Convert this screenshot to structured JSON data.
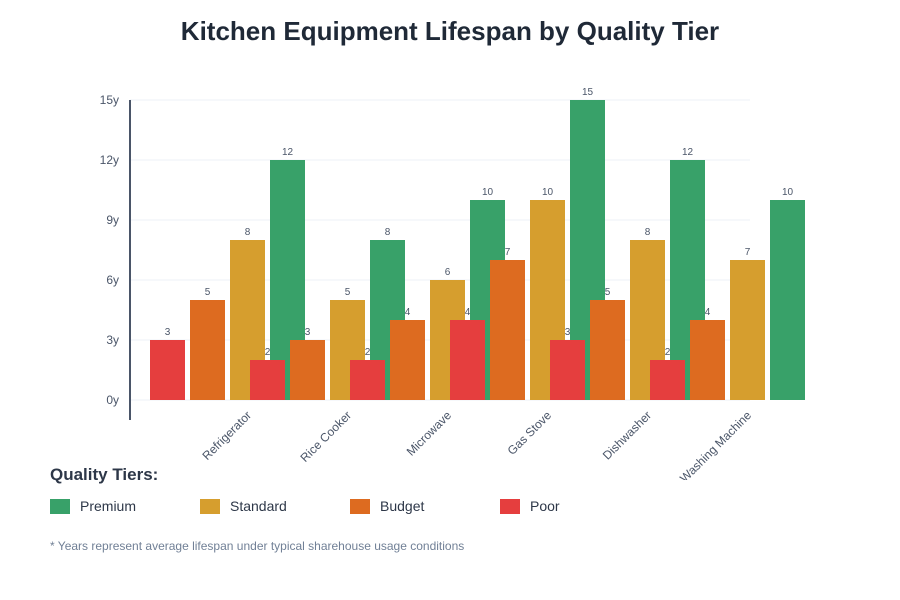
{
  "chart_data": {
    "type": "bar",
    "title": "Kitchen Equipment Lifespan by Quality Tier",
    "categories": [
      "Refrigerator",
      "Rice Cooker",
      "Microwave",
      "Gas Stove",
      "Dishwasher",
      "Washing Machine"
    ],
    "series": [
      {
        "name": "Premium",
        "color": "#38a169",
        "values": [
          12,
          8,
          10,
          15,
          12,
          10
        ]
      },
      {
        "name": "Standard",
        "color": "#d69e2e",
        "values": [
          8,
          5,
          6,
          10,
          8,
          7
        ]
      },
      {
        "name": "Budget",
        "color": "#dd6b20",
        "values": [
          5,
          3,
          4,
          7,
          5,
          4
        ]
      },
      {
        "name": "Poor",
        "color": "#e53e3e",
        "values": [
          3,
          2,
          2,
          4,
          3,
          2
        ]
      }
    ],
    "yticks": [
      "0y",
      "3y",
      "6y",
      "9y",
      "12y",
      "15y"
    ],
    "ylim": [
      0,
      15
    ],
    "grid": true,
    "legend_title": "Quality Tiers:",
    "legend_position": "bottom-left",
    "footnote": "* Years represent average lifespan under typical sharehouse usage conditions"
  }
}
